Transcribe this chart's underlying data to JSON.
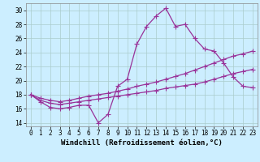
{
  "xlabel": "Windchill (Refroidissement éolien,°C)",
  "background_color": "#cceeff",
  "grid_color": "#aacccc",
  "line_color": "#993399",
  "xlim": [
    -0.5,
    23.5
  ],
  "ylim": [
    13.5,
    31.0
  ],
  "xticks": [
    0,
    1,
    2,
    3,
    4,
    5,
    6,
    7,
    8,
    9,
    10,
    11,
    12,
    13,
    14,
    15,
    16,
    17,
    18,
    19,
    20,
    21,
    22,
    23
  ],
  "yticks": [
    14,
    16,
    18,
    20,
    22,
    24,
    26,
    28,
    30
  ],
  "line1_x": [
    0,
    1,
    2,
    3,
    4,
    5,
    6,
    7,
    8,
    9,
    10,
    11,
    12,
    13,
    14,
    15,
    16,
    17,
    18,
    19,
    20,
    21,
    22,
    23
  ],
  "line1_y": [
    18.0,
    17.0,
    16.2,
    16.0,
    16.2,
    16.5,
    16.5,
    14.0,
    15.2,
    19.2,
    20.2,
    25.2,
    27.7,
    29.2,
    30.3,
    27.7,
    28.0,
    26.0,
    24.5,
    24.2,
    22.5,
    20.5,
    19.2,
    19.0
  ],
  "line2_x": [
    0,
    1,
    2,
    3,
    4,
    5,
    6,
    7,
    8,
    9,
    10,
    11,
    12,
    13,
    14,
    15,
    16,
    17,
    18,
    19,
    20,
    21,
    22,
    23
  ],
  "line2_y": [
    18.0,
    17.5,
    17.2,
    17.0,
    17.2,
    17.5,
    17.8,
    18.0,
    18.2,
    18.5,
    18.8,
    19.2,
    19.5,
    19.8,
    20.2,
    20.6,
    21.0,
    21.5,
    22.0,
    22.5,
    23.0,
    23.5,
    23.8,
    24.2
  ],
  "line3_x": [
    0,
    1,
    2,
    3,
    4,
    5,
    6,
    7,
    8,
    9,
    10,
    11,
    12,
    13,
    14,
    15,
    16,
    17,
    18,
    19,
    20,
    21,
    22,
    23
  ],
  "line3_y": [
    18.0,
    17.2,
    16.8,
    16.6,
    16.8,
    17.0,
    17.2,
    17.4,
    17.6,
    17.8,
    18.0,
    18.2,
    18.4,
    18.6,
    18.9,
    19.1,
    19.3,
    19.5,
    19.8,
    20.2,
    20.6,
    21.0,
    21.3,
    21.6
  ],
  "tick_fontsize": 5.5,
  "label_fontsize": 6.5,
  "markersize": 2.0,
  "linewidth": 0.9
}
